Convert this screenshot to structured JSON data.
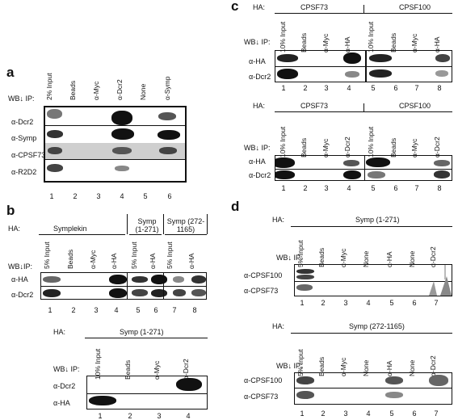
{
  "panels": {
    "a": {
      "label": "a",
      "wb": "WB",
      "ip": "IP:",
      "lanes": [
        "2% Input",
        "Beads",
        "α-Myc",
        "α-Dcr2",
        "None",
        "α-Symp"
      ],
      "rows": [
        "α-Dcr2",
        "α-Symp",
        "α-CPSF73",
        "α-R2D2"
      ],
      "numbers": [
        "1",
        "2",
        "3",
        "4",
        "5",
        "6"
      ]
    },
    "b": {
      "label": "b",
      "top": {
        "ha": "HA:",
        "groups": [
          "Symplekin",
          "Symp (1-271)",
          "Symp (272-1165)"
        ],
        "wb": "WB",
        "ip": "IP:",
        "lanes": [
          "5% Input",
          "Beads",
          "α-Myc",
          "α-HA",
          "5% Input",
          "α-HA",
          "5% Input",
          "α-HA"
        ],
        "rows": [
          "α-HA",
          "α-Dcr2"
        ],
        "numbers": [
          "1",
          "2",
          "3",
          "4",
          "5",
          "6",
          "7",
          "8"
        ]
      },
      "bottom": {
        "ha": "HA:",
        "group": "Symp (1-271)",
        "wb": "WB",
        "ip": "IP:",
        "lanes": [
          "10% Input",
          "Beads",
          "α-Myc",
          "α-Dcr2"
        ],
        "rows": [
          "α-Dcr2",
          "α-HA"
        ],
        "numbers": [
          "1",
          "2",
          "3",
          "4"
        ]
      }
    },
    "c": {
      "label": "c",
      "top": {
        "ha": "HA:",
        "groups": [
          "CPSF73",
          "CPSF100"
        ],
        "wb": "WB",
        "ip": "IP:",
        "lanes": [
          "10% Input",
          "Beads",
          "α-Myc",
          "α-HA",
          "10% Input",
          "Beads",
          "α-Myc",
          "α-HA"
        ],
        "rows": [
          "α-HA",
          "α-Dcr2"
        ],
        "numbers": [
          "1",
          "2",
          "3",
          "4",
          "5",
          "6",
          "7",
          "8"
        ]
      },
      "bottom": {
        "ha": "HA:",
        "groups": [
          "CPSF73",
          "CPSF100"
        ],
        "wb": "WB",
        "ip": "IP:",
        "lanes": [
          "10% Input",
          "Beads",
          "α-Myc",
          "α-Dcr2",
          "10% Input",
          "Beads",
          "α-Myc",
          "α-Dcr2"
        ],
        "rows": [
          "α-HA",
          "α-Dcr2"
        ],
        "numbers": [
          "1",
          "2",
          "3",
          "4",
          "5",
          "6",
          "7",
          "8"
        ]
      }
    },
    "d": {
      "label": "d",
      "top": {
        "ha": "HA:",
        "group": "Symp (1-271)",
        "wb": "WB",
        "ip": "IP:",
        "lanes": [
          "5% Input",
          "Beads",
          "α-Myc",
          "None",
          "α-HA",
          "None",
          "α-Dcr2"
        ],
        "rows": [
          "α-CPSF100",
          "α-CPSF73"
        ],
        "numbers": [
          "1",
          "2",
          "3",
          "4",
          "5",
          "6",
          "7"
        ]
      },
      "bottom": {
        "ha": "HA:",
        "group": "Symp (272-1165)",
        "wb": "WB",
        "ip": "IP:",
        "lanes": [
          "5% Input",
          "Beads",
          "α-Myc",
          "None",
          "α-HA",
          "None",
          "α-Dcr2"
        ],
        "rows": [
          "α-CPSF100",
          "α-CPSF73"
        ],
        "numbers": [
          "1",
          "2",
          "3",
          "4",
          "5",
          "6",
          "7"
        ]
      }
    }
  }
}
